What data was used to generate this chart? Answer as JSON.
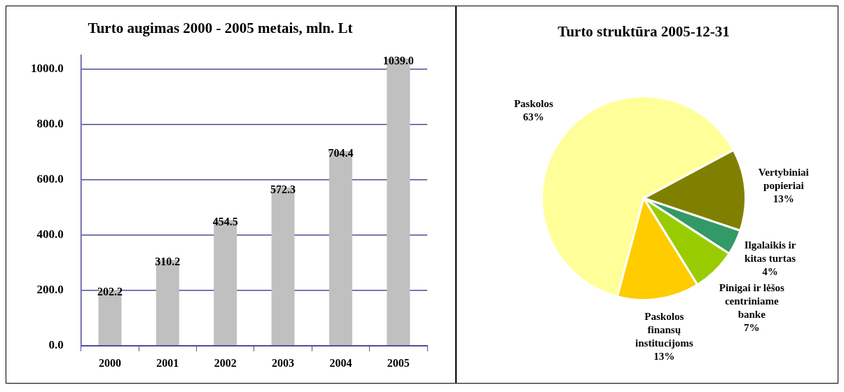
{
  "chart_data": [
    {
      "type": "bar",
      "title": "Turto augimas 2000 - 2005 metais, mln. Lt",
      "categories": [
        "2000",
        "2001",
        "2002",
        "2003",
        "2004",
        "2005"
      ],
      "values": [
        202.2,
        310.2,
        454.5,
        572.3,
        704.4,
        1039.0
      ],
      "value_labels": [
        "202.2",
        "310.2",
        "454.5",
        "572.3",
        "704.4",
        "1039.0"
      ],
      "color": "#c0c0c0",
      "ylim": [
        0,
        1050
      ],
      "yticks": [
        {
          "value": 0,
          "label": "0.0"
        },
        {
          "value": 200,
          "label": "200.0"
        },
        {
          "value": 400,
          "label": "400.0"
        },
        {
          "value": 600,
          "label": "600.0"
        },
        {
          "value": 800,
          "label": "800.0"
        },
        {
          "value": 1000,
          "label": "1000.0"
        }
      ],
      "grid": "y",
      "legend": false
    },
    {
      "type": "pie",
      "title": "Turto struktūra 2005-12-31",
      "categories": [
        "Paskolos",
        "Vertybiniai popieriai",
        "Ilgalaikis ir kitas turtas",
        "Pinigai ir lėšos centriniame banke",
        "Paskolos finansų institucijoms"
      ],
      "values": [
        63,
        13,
        4,
        7,
        13
      ],
      "value_labels": [
        "63%",
        "13%",
        "4%",
        "7%",
        "13%"
      ],
      "colors": [
        "#ffff99",
        "#808000",
        "#339966",
        "#99cc00",
        "#ffcc00"
      ],
      "legend": false
    }
  ]
}
